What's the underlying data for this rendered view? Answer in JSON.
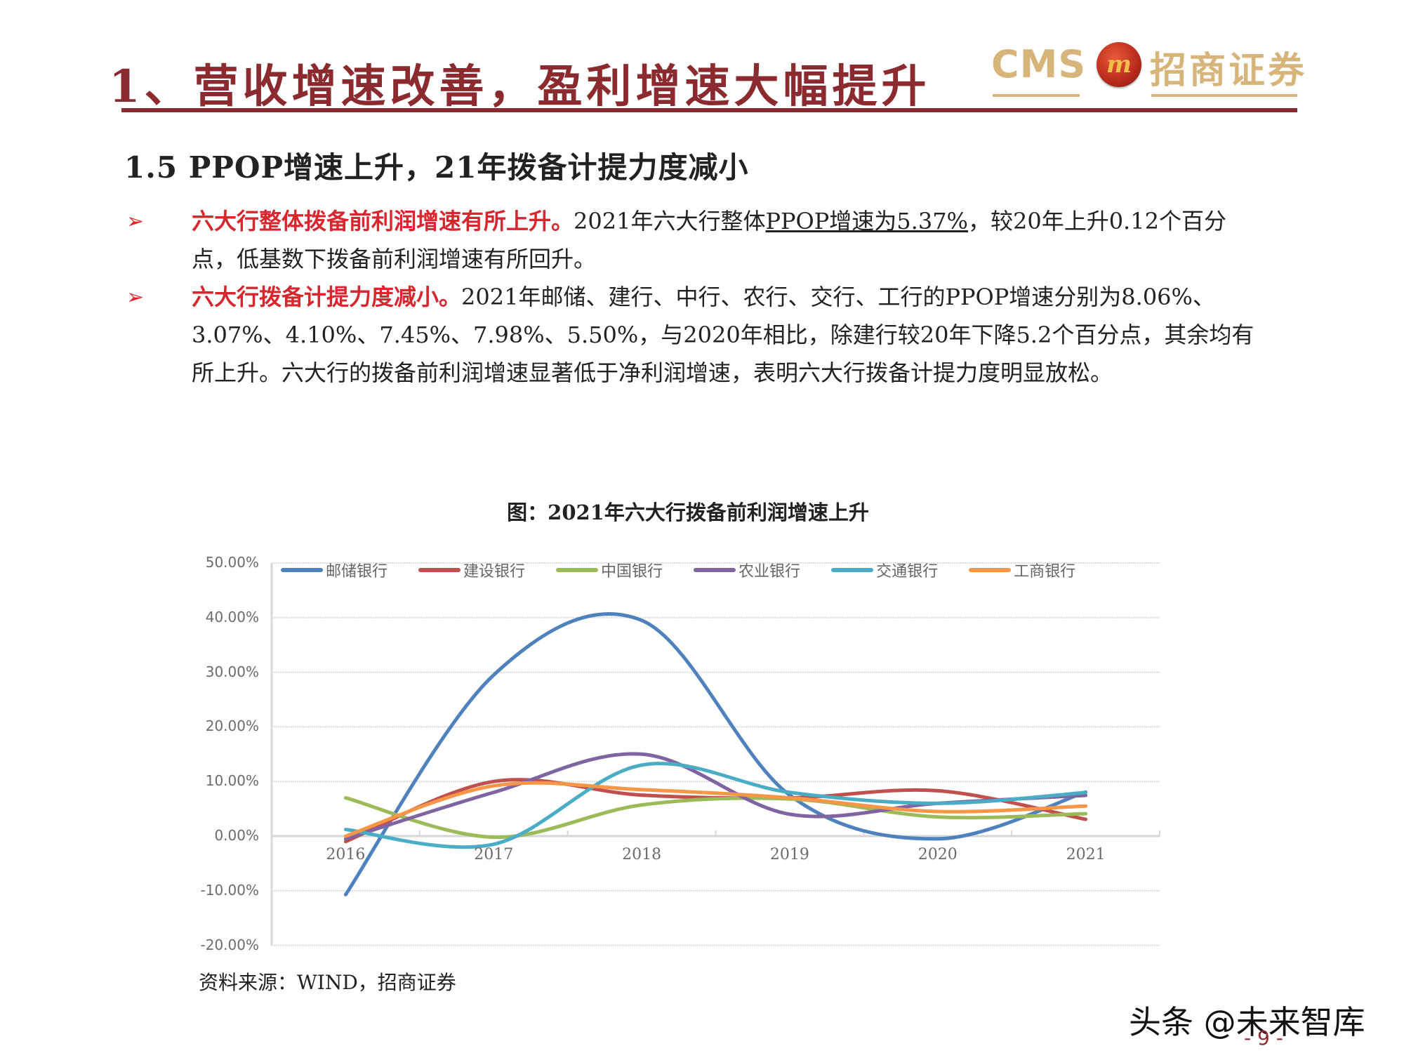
{
  "header": {
    "title": "1、营收增速改善，盈利增速大幅提升",
    "logo": {
      "latin": "CMS",
      "badge": "m",
      "chinese": "招商证券"
    },
    "brand_color": "#8b2b2f",
    "logo_color": "#d6b47a"
  },
  "section": {
    "title": "1.5  PPOP增速上升，21年拨备计提力度减小"
  },
  "bullets": [
    {
      "marker": "➢",
      "lead": "六大行整体拨备前利润增速有所上升。",
      "text_before_underline": "2021年六大行整体",
      "underlined": "PPOP增速为5.37%",
      "text_after_underline": "，较20年上升0.12个百分点，低基数下拨备前利润增速有所回升。"
    },
    {
      "marker": "➢",
      "lead": "六大行拨备计提力度减小。",
      "text": "2021年邮储、建行、中行、农行、交行、工行的PPOP增速分别为8.06%、3.07%、4.10%、7.45%、7.98%、5.50%，与2020年相比，除建行较20年下降5.2个百分点，其余均有所上升。六大行的拨备前利润增速显著低于净利润增速，表明六大行拨备计提力度明显放松。"
    }
  ],
  "chart_title": "图：2021年六大行拨备前利润增速上升",
  "source": "资料来源：WIND，招商证券",
  "watermark": "头条 @未来智库",
  "page_number": "- 9 -",
  "chart_data": {
    "type": "line",
    "title": "图：2021年六大行拨备前利润增速上升",
    "xlabel": "",
    "ylabel": "",
    "categories": [
      "2016",
      "2017",
      "2018",
      "2019",
      "2020",
      "2021"
    ],
    "y_ticks": [
      "50.00%",
      "40.00%",
      "30.00%",
      "20.00%",
      "10.00%",
      "0.00%",
      "-10.00%",
      "-20.00%"
    ],
    "ylim": [
      -0.2,
      0.5
    ],
    "grid": true,
    "smooth": true,
    "legend_position": "top-inside",
    "series": [
      {
        "name": "邮储银行",
        "color": "#4f81bd",
        "values": [
          -0.107,
          0.295,
          0.395,
          0.075,
          -0.005,
          0.0806
        ]
      },
      {
        "name": "建设银行",
        "color": "#c0504d",
        "values": [
          -0.01,
          0.1,
          0.075,
          0.07,
          0.083,
          0.0307
        ]
      },
      {
        "name": "中国银行",
        "color": "#9bbb59",
        "values": [
          0.07,
          -0.002,
          0.057,
          0.068,
          0.035,
          0.041
        ]
      },
      {
        "name": "农业银行",
        "color": "#8064a2",
        "values": [
          -0.005,
          0.08,
          0.15,
          0.04,
          0.06,
          0.0745
        ]
      },
      {
        "name": "交通银行",
        "color": "#4bacc6",
        "values": [
          0.012,
          -0.015,
          0.13,
          0.08,
          0.06,
          0.0798
        ]
      },
      {
        "name": "工商银行",
        "color": "#f79646",
        "values": [
          0.0,
          0.092,
          0.085,
          0.07,
          0.045,
          0.055
        ]
      }
    ]
  }
}
